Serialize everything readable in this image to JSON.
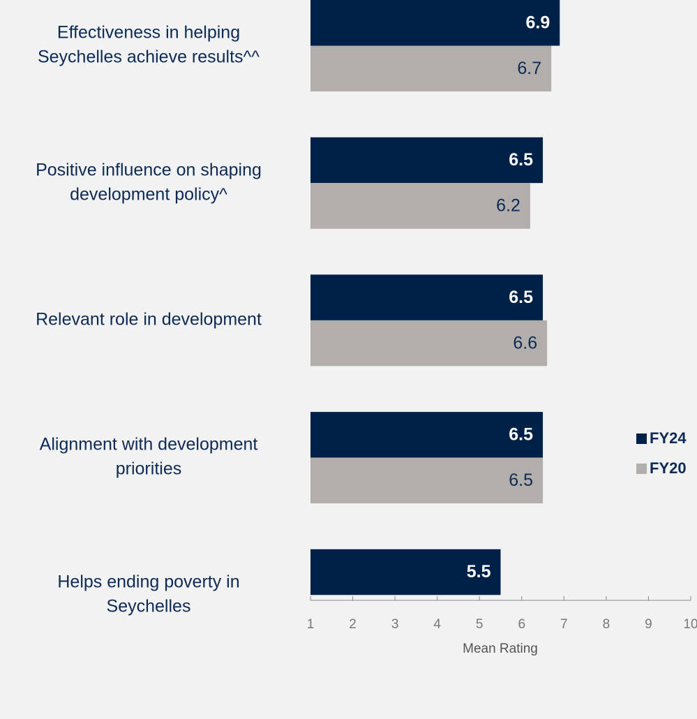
{
  "chart_data": {
    "type": "hbar",
    "categories": [
      [
        "Effectiveness in helping",
        "Seychelles achieve results^^"
      ],
      [
        "Positive influence on shaping",
        "development policy^"
      ],
      [
        "Relevant role in development"
      ],
      [
        "Alignment with development",
        "priorities"
      ],
      [
        "Helps ending poverty in",
        "Seychelles"
      ]
    ],
    "series": [
      {
        "name": "FY24",
        "color": "#002147",
        "values": [
          6.9,
          6.5,
          6.5,
          6.5,
          5.5
        ]
      },
      {
        "name": "FY20",
        "color": "#b1aeac",
        "values": [
          6.7,
          6.2,
          6.6,
          6.5,
          null
        ]
      }
    ],
    "xlabel": "Mean Rating",
    "xlim": [
      1,
      10
    ],
    "xticks": [
      1,
      2,
      3,
      4,
      5,
      6,
      7,
      8,
      9,
      10
    ],
    "legend": "right"
  }
}
